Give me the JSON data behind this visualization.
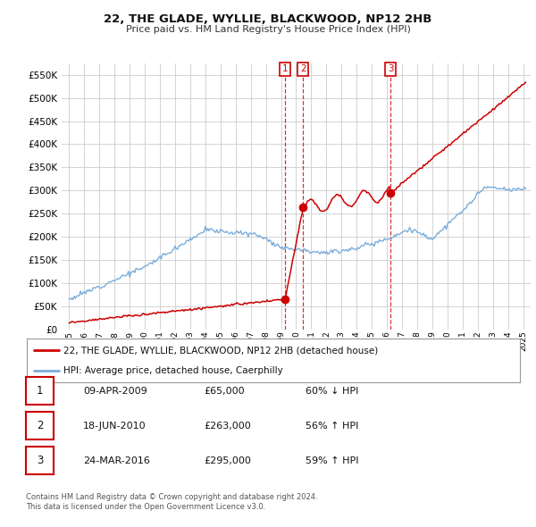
{
  "title": "22, THE GLADE, WYLLIE, BLACKWOOD, NP12 2HB",
  "subtitle": "Price paid vs. HM Land Registry's House Price Index (HPI)",
  "hpi_color": "#7aaddb",
  "price_color": "#cc0000",
  "background_color": "#ffffff",
  "grid_color": "#cccccc",
  "ylim": [
    0,
    575000
  ],
  "yticks": [
    0,
    50000,
    100000,
    150000,
    200000,
    250000,
    300000,
    350000,
    400000,
    450000,
    500000,
    550000
  ],
  "transactions": [
    {
      "label": "1",
      "date": "09-APR-2009",
      "price": 65000,
      "x": 2009.27,
      "hpi_pct": "60% ↓ HPI"
    },
    {
      "label": "2",
      "date": "18-JUN-2010",
      "price": 263000,
      "x": 2010.46,
      "hpi_pct": "56% ↑ HPI"
    },
    {
      "label": "3",
      "date": "24-MAR-2016",
      "price": 295000,
      "x": 2016.23,
      "hpi_pct": "59% ↑ HPI"
    }
  ],
  "legend_entries": [
    {
      "label": "22, THE GLADE, WYLLIE, BLACKWOOD, NP12 2HB (detached house)",
      "color": "#cc0000"
    },
    {
      "label": "HPI: Average price, detached house, Caerphilly",
      "color": "#7aaddb"
    }
  ],
  "table_rows": [
    [
      "1",
      "09-APR-2009",
      "£65,000",
      "60% ↓ HPI"
    ],
    [
      "2",
      "18-JUN-2010",
      "£263,000",
      "56% ↑ HPI"
    ],
    [
      "3",
      "24-MAR-2016",
      "£295,000",
      "59% ↑ HPI"
    ]
  ],
  "footnote": "Contains HM Land Registry data © Crown copyright and database right 2024.\nThis data is licensed under the Open Government Licence v3.0.",
  "xlim_start": 1994.5,
  "xlim_end": 2025.5
}
